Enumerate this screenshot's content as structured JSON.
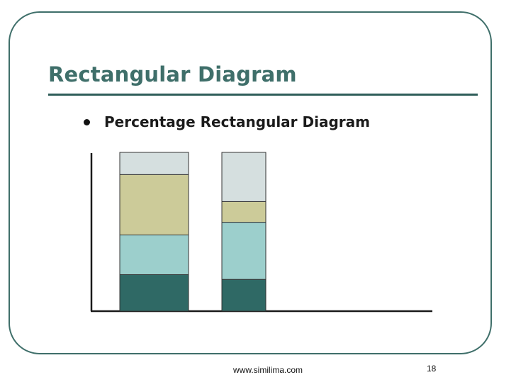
{
  "slide": {
    "title": "Rectangular Diagram",
    "bullet": "Percentage Rectangular Diagram",
    "footer_url": "www.similima.com",
    "page_number": "18"
  },
  "colors": {
    "frame": "#3f6f6a",
    "title": "#3f6f6a",
    "axis": "#1a1a1a",
    "segment_fill": [
      "#2f6965",
      "#9ccfcc",
      "#cccb99",
      "#d5dfdf"
    ],
    "segment_stroke": "#333333"
  },
  "chart_data": {
    "type": "bar",
    "stacked": true,
    "percentage": true,
    "ylim": [
      0,
      100
    ],
    "categories": [
      "",
      ""
    ],
    "series": [
      {
        "values": [
          23,
          20
        ]
      },
      {
        "values": [
          25,
          36
        ]
      },
      {
        "values": [
          38,
          13
        ]
      },
      {
        "values": [
          14,
          31
        ]
      }
    ]
  }
}
